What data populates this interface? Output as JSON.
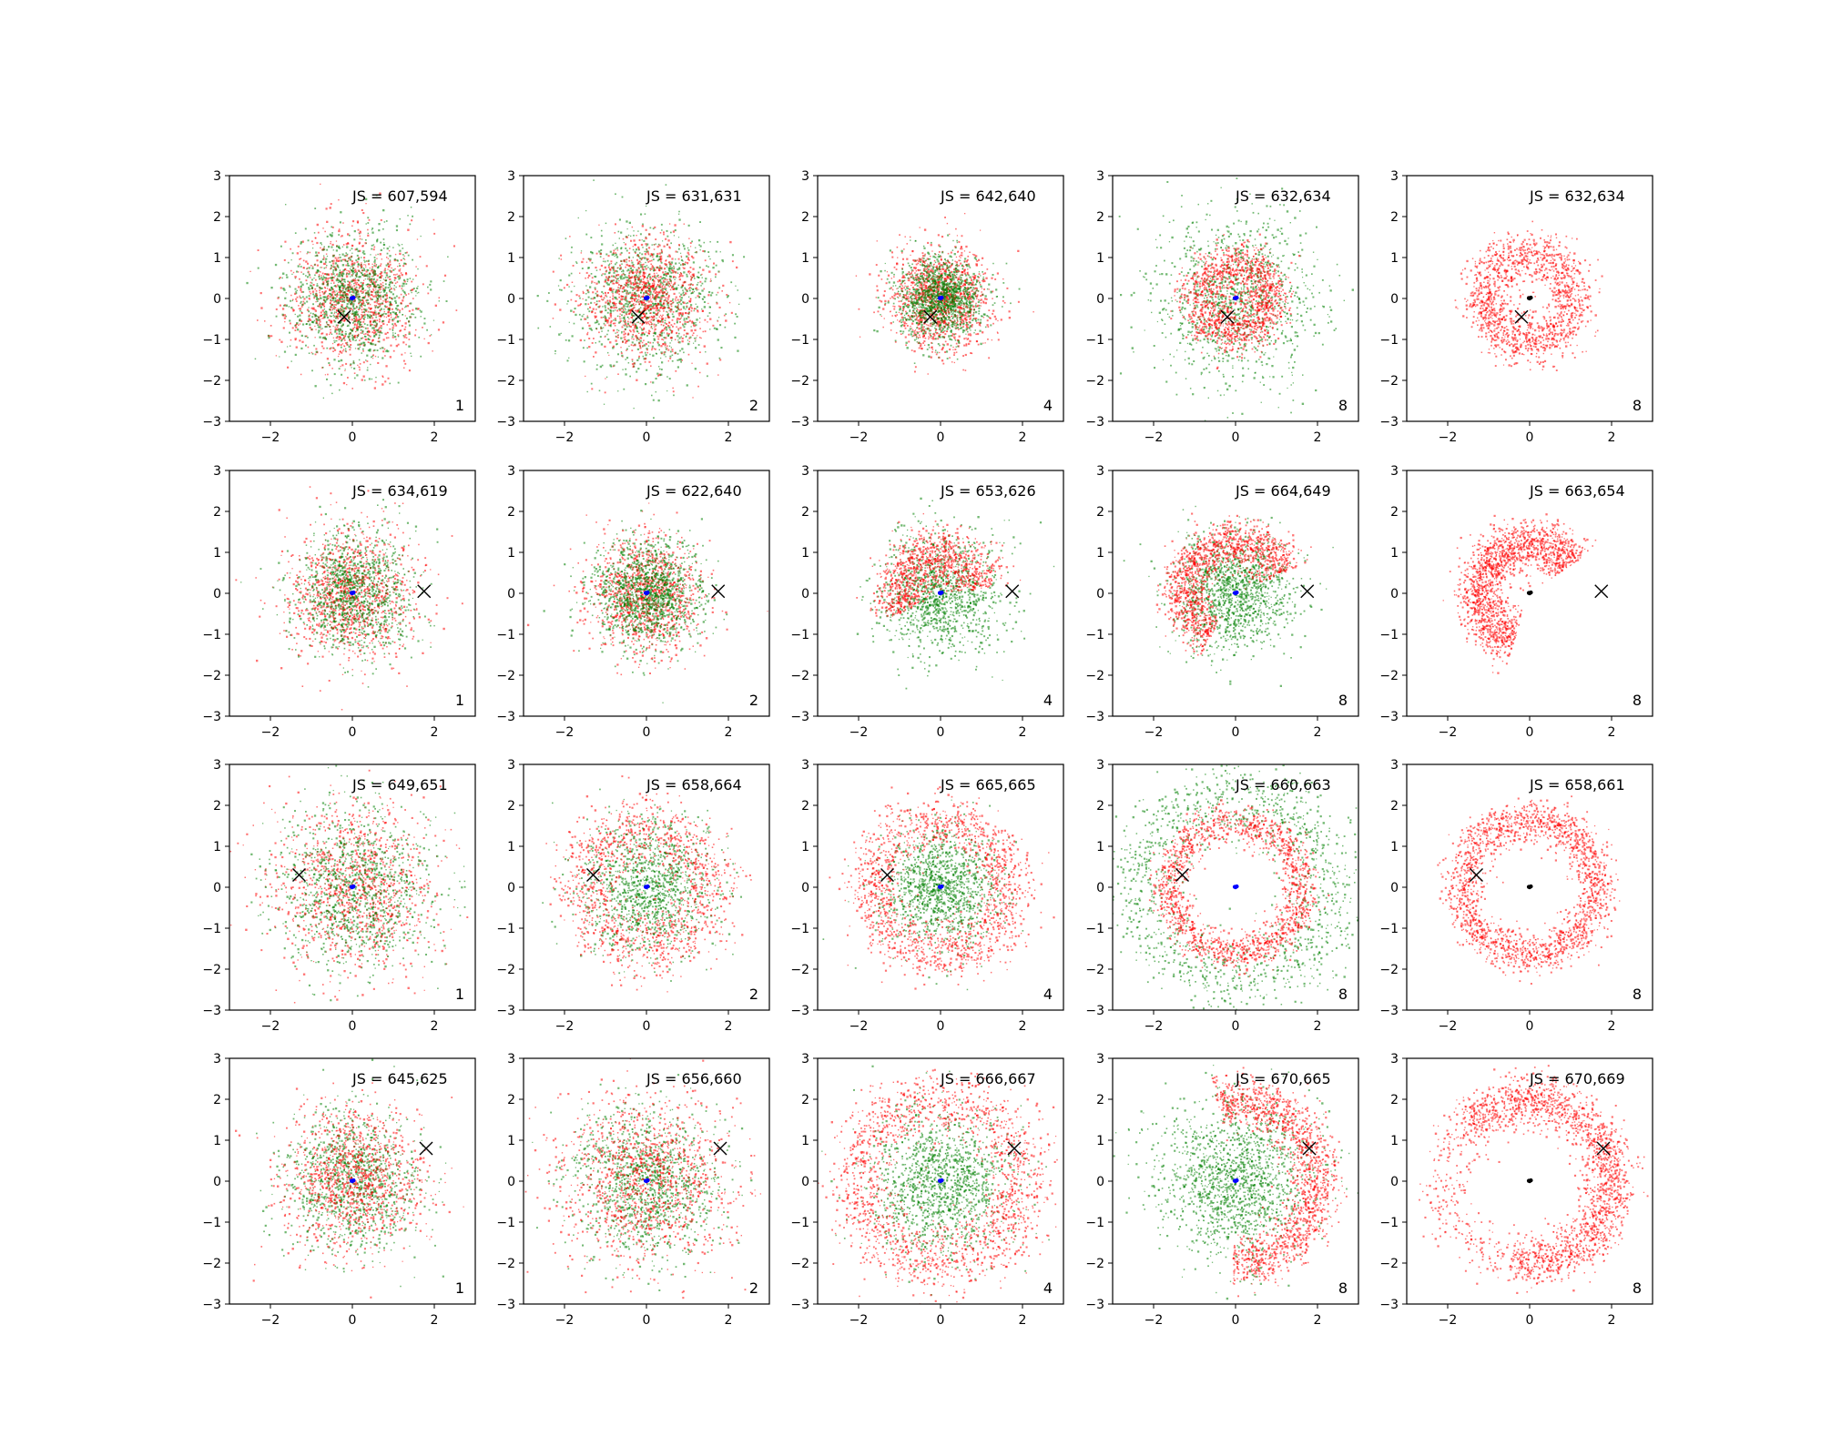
{
  "figure": {
    "rows": 4,
    "cols": 5
  },
  "colors": {
    "scatter_a": "#ff0000",
    "scatter_b": "#008000",
    "center_blue": "#0000ff",
    "center_black": "#000000",
    "marker": "#000000"
  },
  "chart_data": [
    {
      "type": "scatter",
      "row": 0,
      "col": 0,
      "js_label": "JS = 607,594",
      "panel_label": "1",
      "xlim": [
        -3,
        3
      ],
      "ylim": [
        -3,
        3
      ],
      "xticks": [
        -2,
        0,
        2
      ],
      "yticks": [
        -3,
        -2,
        -1,
        0,
        1,
        2,
        3
      ],
      "distributions": [
        {
          "series": "scatter_a",
          "shape": "gaussian",
          "sigma": 0.8,
          "count": 1100
        },
        {
          "series": "scatter_b",
          "shape": "gaussian",
          "sigma": 0.8,
          "count": 1100
        }
      ],
      "center": [
        0,
        0
      ],
      "center_color": "center_blue",
      "cross": [
        -0.2,
        -0.45
      ]
    },
    {
      "type": "scatter",
      "row": 0,
      "col": 1,
      "js_label": "JS = 631,631",
      "panel_label": "2",
      "xlim": [
        -3,
        3
      ],
      "ylim": [
        -3,
        3
      ],
      "xticks": [
        -2,
        0,
        2
      ],
      "yticks": [
        -3,
        -2,
        -1,
        0,
        1,
        2,
        3
      ],
      "distributions": [
        {
          "series": "scatter_b",
          "shape": "gaussian",
          "sigma": 0.85,
          "count": 1100
        },
        {
          "series": "scatter_a",
          "shape": "gaussian",
          "sigma": 0.75,
          "count": 1100
        }
      ],
      "center": [
        0,
        0
      ],
      "center_color": "center_blue",
      "cross": [
        -0.2,
        -0.45
      ]
    },
    {
      "type": "scatter",
      "row": 0,
      "col": 2,
      "js_label": "JS = 642,640",
      "panel_label": "4",
      "xlim": [
        -3,
        3
      ],
      "ylim": [
        -3,
        3
      ],
      "xticks": [
        -2,
        0,
        2
      ],
      "yticks": [
        -3,
        -2,
        -1,
        0,
        1,
        2,
        3
      ],
      "distributions": [
        {
          "series": "scatter_a",
          "shape": "gaussian",
          "sigma": 0.6,
          "count": 1300
        },
        {
          "series": "scatter_b",
          "shape": "gaussian",
          "sigma": 0.5,
          "count": 1300
        }
      ],
      "center": [
        0,
        0
      ],
      "center_color": "center_blue",
      "cross": [
        -0.25,
        -0.45
      ]
    },
    {
      "type": "scatter",
      "row": 0,
      "col": 3,
      "js_label": "JS = 632,634",
      "panel_label": "8",
      "xlim": [
        -3,
        3
      ],
      "ylim": [
        -3,
        3
      ],
      "xticks": [
        -2,
        0,
        2
      ],
      "yticks": [
        -3,
        -2,
        -1,
        0,
        1,
        2,
        3
      ],
      "distributions": [
        {
          "series": "scatter_b",
          "shape": "gaussian",
          "sigma": 1.0,
          "count": 1100
        },
        {
          "series": "scatter_a",
          "shape": "ring",
          "radius": 0.85,
          "width": 0.3,
          "count": 1300
        }
      ],
      "center": [
        0,
        0
      ],
      "center_color": "center_blue",
      "cross": [
        -0.2,
        -0.45
      ]
    },
    {
      "type": "scatter",
      "row": 0,
      "col": 4,
      "js_label": "JS = 632,634",
      "panel_label": "8",
      "xlim": [
        -3,
        3
      ],
      "ylim": [
        -3,
        3
      ],
      "xticks": [
        -2,
        0,
        2
      ],
      "yticks": [
        -3,
        -2,
        -1,
        0,
        1,
        2,
        3
      ],
      "distributions": [
        {
          "series": "scatter_a",
          "shape": "ring",
          "radius": 1.1,
          "width": 0.3,
          "count": 1400
        }
      ],
      "center": [
        0,
        0
      ],
      "center_color": "center_black",
      "cross": [
        -0.2,
        -0.45
      ]
    },
    {
      "type": "scatter",
      "row": 1,
      "col": 0,
      "js_label": "JS = 634,619",
      "panel_label": "1",
      "xlim": [
        -3,
        3
      ],
      "ylim": [
        -3,
        3
      ],
      "xticks": [
        -2,
        0,
        2
      ],
      "yticks": [
        -3,
        -2,
        -1,
        0,
        1,
        2,
        3
      ],
      "distributions": [
        {
          "series": "scatter_a",
          "shape": "gaussian",
          "sigma": 0.8,
          "count": 1100
        },
        {
          "series": "scatter_b",
          "shape": "gaussian",
          "sigma": 0.75,
          "count": 1100
        }
      ],
      "center": [
        0,
        0
      ],
      "center_color": "center_blue",
      "cross": [
        1.75,
        0.05
      ]
    },
    {
      "type": "scatter",
      "row": 1,
      "col": 1,
      "js_label": "JS = 622,640",
      "panel_label": "2",
      "xlim": [
        -3,
        3
      ],
      "ylim": [
        -3,
        3
      ],
      "xticks": [
        -2,
        0,
        2
      ],
      "yticks": [
        -3,
        -2,
        -1,
        0,
        1,
        2,
        3
      ],
      "distributions": [
        {
          "series": "scatter_a",
          "shape": "gaussian",
          "sigma": 0.7,
          "count": 1100
        },
        {
          "series": "scatter_b",
          "shape": "gaussian",
          "sigma": 0.65,
          "count": 1300
        }
      ],
      "center": [
        0,
        0
      ],
      "center_color": "center_blue",
      "cross": [
        1.75,
        0.05
      ]
    },
    {
      "type": "scatter",
      "row": 1,
      "col": 2,
      "js_label": "JS = 653,626",
      "panel_label": "4",
      "xlim": [
        -3,
        3
      ],
      "ylim": [
        -3,
        3
      ],
      "xticks": [
        -2,
        0,
        2
      ],
      "yticks": [
        -3,
        -2,
        -1,
        0,
        1,
        2,
        3
      ],
      "distributions": [
        {
          "series": "scatter_b",
          "shape": "gaussian",
          "sigma": 0.75,
          "count": 1200
        },
        {
          "series": "scatter_a",
          "shape": "arc",
          "radius": 1.0,
          "width": 0.35,
          "start": 0.1,
          "end": 3.6,
          "count": 1000
        }
      ],
      "center": [
        0,
        0
      ],
      "center_color": "center_blue",
      "cross": [
        1.75,
        0.05
      ]
    },
    {
      "type": "scatter",
      "row": 1,
      "col": 3,
      "js_label": "JS = 664,649",
      "panel_label": "8",
      "xlim": [
        -3,
        3
      ],
      "ylim": [
        -3,
        3
      ],
      "xticks": [
        -2,
        0,
        2
      ],
      "yticks": [
        -3,
        -2,
        -1,
        0,
        1,
        2,
        3
      ],
      "distributions": [
        {
          "series": "scatter_b",
          "shape": "gaussian",
          "sigma": 0.7,
          "count": 1300
        },
        {
          "series": "scatter_a",
          "shape": "arc",
          "radius": 1.25,
          "width": 0.3,
          "start": 0.4,
          "end": 4.2,
          "count": 1300
        }
      ],
      "center": [
        0,
        0
      ],
      "center_color": "center_blue",
      "cross": [
        1.75,
        0.05
      ]
    },
    {
      "type": "scatter",
      "row": 1,
      "col": 4,
      "js_label": "JS = 663,654",
      "panel_label": "8",
      "xlim": [
        -3,
        3
      ],
      "ylim": [
        -3,
        3
      ],
      "xticks": [
        -2,
        0,
        2
      ],
      "yticks": [
        -3,
        -2,
        -1,
        0,
        1,
        2,
        3
      ],
      "distributions": [
        {
          "series": "scatter_a",
          "shape": "arc",
          "radius": 1.25,
          "width": 0.3,
          "start": 0.6,
          "end": 4.4,
          "count": 1600
        }
      ],
      "center": [
        0,
        0
      ],
      "center_color": "center_black",
      "cross": [
        1.75,
        0.05
      ]
    },
    {
      "type": "scatter",
      "row": 2,
      "col": 0,
      "js_label": "JS = 649,651",
      "panel_label": "1",
      "xlim": [
        -3,
        3
      ],
      "ylim": [
        -3,
        3
      ],
      "xticks": [
        -2,
        0,
        2
      ],
      "yticks": [
        -3,
        -2,
        -1,
        0,
        1,
        2,
        3
      ],
      "distributions": [
        {
          "series": "scatter_a",
          "shape": "gaussian",
          "sigma": 1.0,
          "count": 1100
        },
        {
          "series": "scatter_b",
          "shape": "gaussian",
          "sigma": 1.0,
          "count": 1100
        }
      ],
      "center": [
        0,
        0
      ],
      "center_color": "center_blue",
      "cross": [
        -1.3,
        0.3
      ]
    },
    {
      "type": "scatter",
      "row": 2,
      "col": 1,
      "js_label": "JS = 658,664",
      "panel_label": "2",
      "xlim": [
        -3,
        3
      ],
      "ylim": [
        -3,
        3
      ],
      "xticks": [
        -2,
        0,
        2
      ],
      "yticks": [
        -3,
        -2,
        -1,
        0,
        1,
        2,
        3
      ],
      "distributions": [
        {
          "series": "scatter_b",
          "shape": "gaussian",
          "sigma": 0.8,
          "count": 1200
        },
        {
          "series": "scatter_a",
          "shape": "ring",
          "radius": 1.5,
          "width": 0.45,
          "count": 1200
        }
      ],
      "center": [
        0,
        0
      ],
      "center_color": "center_blue",
      "cross": [
        -1.3,
        0.3
      ]
    },
    {
      "type": "scatter",
      "row": 2,
      "col": 2,
      "js_label": "JS = 665,665",
      "panel_label": "4",
      "xlim": [
        -3,
        3
      ],
      "ylim": [
        -3,
        3
      ],
      "xticks": [
        -2,
        0,
        2
      ],
      "yticks": [
        -3,
        -2,
        -1,
        0,
        1,
        2,
        3
      ],
      "distributions": [
        {
          "series": "scatter_b",
          "shape": "gaussian",
          "sigma": 0.7,
          "count": 1200
        },
        {
          "series": "scatter_a",
          "shape": "ring",
          "radius": 1.65,
          "width": 0.35,
          "count": 1400
        }
      ],
      "center": [
        0,
        0
      ],
      "center_color": "center_blue",
      "cross": [
        -1.3,
        0.3
      ]
    },
    {
      "type": "scatter",
      "row": 2,
      "col": 3,
      "js_label": "JS = 660,663",
      "panel_label": "8",
      "xlim": [
        -3,
        3
      ],
      "ylim": [
        -3,
        3
      ],
      "xticks": [
        -2,
        0,
        2
      ],
      "yticks": [
        -3,
        -2,
        -1,
        0,
        1,
        2,
        3
      ],
      "distributions": [
        {
          "series": "scatter_b",
          "shape": "ring",
          "radius": 2.3,
          "width": 0.5,
          "count": 1300
        },
        {
          "series": "scatter_a",
          "shape": "ring",
          "radius": 1.6,
          "width": 0.22,
          "count": 1500
        }
      ],
      "center": [
        0,
        0
      ],
      "center_color": "center_blue",
      "cross": [
        -1.3,
        0.3
      ]
    },
    {
      "type": "scatter",
      "row": 2,
      "col": 4,
      "js_label": "JS = 658,661",
      "panel_label": "8",
      "xlim": [
        -3,
        3
      ],
      "ylim": [
        -3,
        3
      ],
      "xticks": [
        -2,
        0,
        2
      ],
      "yticks": [
        -3,
        -2,
        -1,
        0,
        1,
        2,
        3
      ],
      "distributions": [
        {
          "series": "scatter_a",
          "shape": "ring",
          "radius": 1.65,
          "width": 0.25,
          "count": 1800
        }
      ],
      "center": [
        0,
        0
      ],
      "center_color": "center_black",
      "cross": [
        -1.3,
        0.3
      ]
    },
    {
      "type": "scatter",
      "row": 3,
      "col": 0,
      "js_label": "JS = 645,625",
      "panel_label": "1",
      "xlim": [
        -3,
        3
      ],
      "ylim": [
        -3,
        3
      ],
      "xticks": [
        -2,
        0,
        2
      ],
      "yticks": [
        -3,
        -2,
        -1,
        0,
        1,
        2,
        3
      ],
      "distributions": [
        {
          "series": "scatter_b",
          "shape": "gaussian",
          "sigma": 0.85,
          "count": 1100
        },
        {
          "series": "scatter_a",
          "shape": "gaussian",
          "sigma": 0.85,
          "count": 1100
        }
      ],
      "center": [
        0,
        0
      ],
      "center_color": "center_blue",
      "cross": [
        1.8,
        0.8
      ]
    },
    {
      "type": "scatter",
      "row": 3,
      "col": 1,
      "js_label": "JS = 656,660",
      "panel_label": "2",
      "xlim": [
        -3,
        3
      ],
      "ylim": [
        -3,
        3
      ],
      "xticks": [
        -2,
        0,
        2
      ],
      "yticks": [
        -3,
        -2,
        -1,
        0,
        1,
        2,
        3
      ],
      "distributions": [
        {
          "series": "scatter_b",
          "shape": "gaussian",
          "sigma": 0.9,
          "count": 1200
        },
        {
          "series": "scatter_a",
          "shape": "gaussian",
          "sigma": 1.05,
          "count": 1200
        }
      ],
      "center": [
        0,
        0
      ],
      "center_color": "center_blue",
      "cross": [
        1.8,
        0.8
      ]
    },
    {
      "type": "scatter",
      "row": 3,
      "col": 2,
      "js_label": "JS = 666,667",
      "panel_label": "4",
      "xlim": [
        -3,
        3
      ],
      "ylim": [
        -3,
        3
      ],
      "xticks": [
        -2,
        0,
        2
      ],
      "yticks": [
        -3,
        -2,
        -1,
        0,
        1,
        2,
        3
      ],
      "distributions": [
        {
          "series": "scatter_b",
          "shape": "gaussian",
          "sigma": 0.85,
          "count": 1300
        },
        {
          "series": "scatter_a",
          "shape": "ring",
          "radius": 2.0,
          "width": 0.4,
          "count": 1600
        }
      ],
      "center": [
        0,
        0
      ],
      "center_color": "center_blue",
      "cross": [
        1.8,
        0.8
      ]
    },
    {
      "type": "scatter",
      "row": 3,
      "col": 3,
      "js_label": "JS = 670,665",
      "panel_label": "8",
      "xlim": [
        -3,
        3
      ],
      "ylim": [
        -3,
        3
      ],
      "xticks": [
        -2,
        0,
        2
      ],
      "yticks": [
        -3,
        -2,
        -1,
        0,
        1,
        2,
        3
      ],
      "distributions": [
        {
          "series": "scatter_b",
          "shape": "gaussian",
          "sigma": 0.95,
          "count": 1500
        },
        {
          "series": "scatter_a",
          "shape": "arc",
          "radius": 2.0,
          "width": 0.3,
          "start": -1.6,
          "end": 1.8,
          "count": 1400
        }
      ],
      "center": [
        0,
        0
      ],
      "center_color": "center_blue",
      "cross": [
        1.8,
        0.8
      ]
    },
    {
      "type": "scatter",
      "row": 3,
      "col": 4,
      "js_label": "JS = 670,669",
      "panel_label": "8",
      "xlim": [
        -3,
        3
      ],
      "ylim": [
        -3,
        3
      ],
      "xticks": [
        -2,
        0,
        2
      ],
      "yticks": [
        -3,
        -2,
        -1,
        0,
        1,
        2,
        3
      ],
      "distributions": [
        {
          "series": "scatter_a",
          "shape": "arc",
          "radius": 2.0,
          "width": 0.3,
          "start": -1.8,
          "end": 2.4,
          "count": 1800
        },
        {
          "series": "scatter_a",
          "shape": "arc",
          "radius": 2.0,
          "width": 0.35,
          "start": 2.4,
          "end": 4.4,
          "count": 250
        }
      ],
      "center": [
        0,
        0
      ],
      "center_color": "center_black",
      "cross": [
        1.8,
        0.8
      ]
    }
  ]
}
